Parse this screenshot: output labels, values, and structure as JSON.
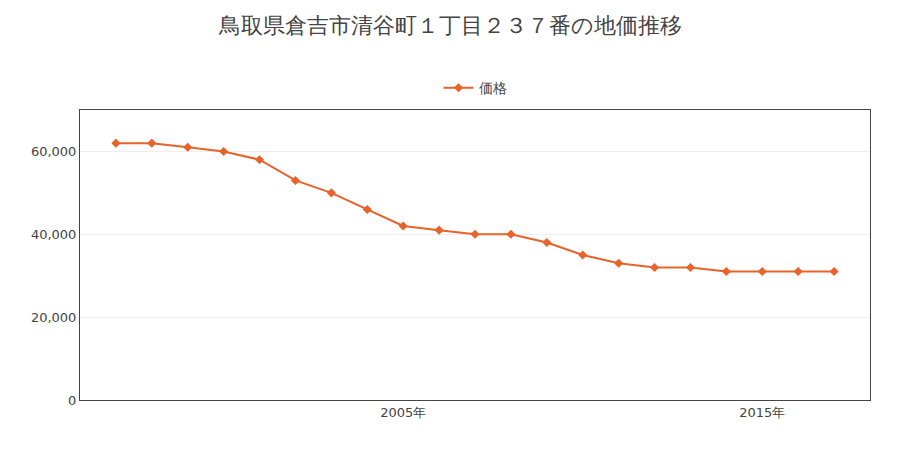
{
  "chart_data": {
    "type": "line",
    "title": "鳥取県倉吉市清谷町１丁目２３７番の地価推移",
    "x": [
      1997,
      1998,
      1999,
      2000,
      2001,
      2002,
      2003,
      2004,
      2005,
      2006,
      2007,
      2008,
      2009,
      2010,
      2011,
      2012,
      2013,
      2014,
      2015,
      2016,
      2017
    ],
    "series": [
      {
        "name": "価格",
        "color": "#E8622A",
        "marker": "diamond",
        "line_style": "solid",
        "values": [
          62000,
          62000,
          61000,
          60000,
          58000,
          53000,
          50000,
          46000,
          42000,
          41000,
          40000,
          40000,
          38000,
          35000,
          33000,
          32000,
          32000,
          31000,
          31000,
          31000,
          31000
        ]
      }
    ],
    "xlim": [
      1996,
      2018
    ],
    "xticks": [
      {
        "value": 2005,
        "label": "2005年"
      },
      {
        "value": 2015,
        "label": "2015年"
      }
    ],
    "ylim": [
      0,
      70000
    ],
    "yticks": [
      0,
      {
        "value": 20000,
        "label": "20,000"
      },
      {
        "value": 40000,
        "label": "40,000"
      },
      {
        "value": 60000,
        "label": "60,000"
      }
    ],
    "grid": true,
    "legend": "top"
  }
}
